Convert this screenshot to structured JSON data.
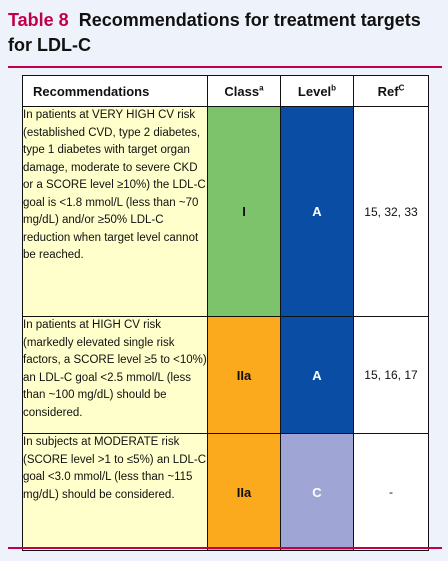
{
  "title": {
    "label": "Table 8",
    "text": "Recommendations for treatment targets for LDL-C"
  },
  "headers": {
    "recommendations": "Recommendations",
    "class": "Class",
    "class_sup": "a",
    "level": "Level",
    "level_sup": "b",
    "ref": "Ref",
    "ref_sup": "C"
  },
  "rows": [
    {
      "text": "In patients at VERY HIGH CV risk (established CVD, type 2 diabetes, type 1 diabetes with target organ damage, moderate to severe CKD or a SCORE level ≥10%) the LDL-C goal is <1.8 mmol/L (less than ~70 mg/dL) and/or ≥50% LDL-C reduction when target level cannot be reached.",
      "class": "I",
      "level": "A",
      "ref": "15, 32, 33",
      "class_color": "#7dc36b",
      "level_color": "#0a4da5"
    },
    {
      "text": "In patients at HIGH CV risk (markedly elevated single risk factors, a SCORE level ≥5 to <10%) an LDL-C goal <2.5 mmol/L (less than ~100 mg/dL) should be considered.",
      "class": "IIa",
      "level": "A",
      "ref": "15, 16, 17",
      "class_color": "#fbaa1e",
      "level_color": "#0a4da5"
    },
    {
      "text": "In subjects at MODERATE risk (SCORE level >1 to ≤5%) an LDL-C goal <3.0 mmol/L (less than ~115 mg/dL) should be considered.",
      "class": "IIa",
      "level": "C",
      "ref": "-",
      "class_color": "#fbaa1e",
      "level_color": "#9fa6d6"
    }
  ],
  "colors": {
    "accent": "#c0004a",
    "recommendation_bg": "#ffffcc",
    "page_bg": "#eef3fb"
  }
}
